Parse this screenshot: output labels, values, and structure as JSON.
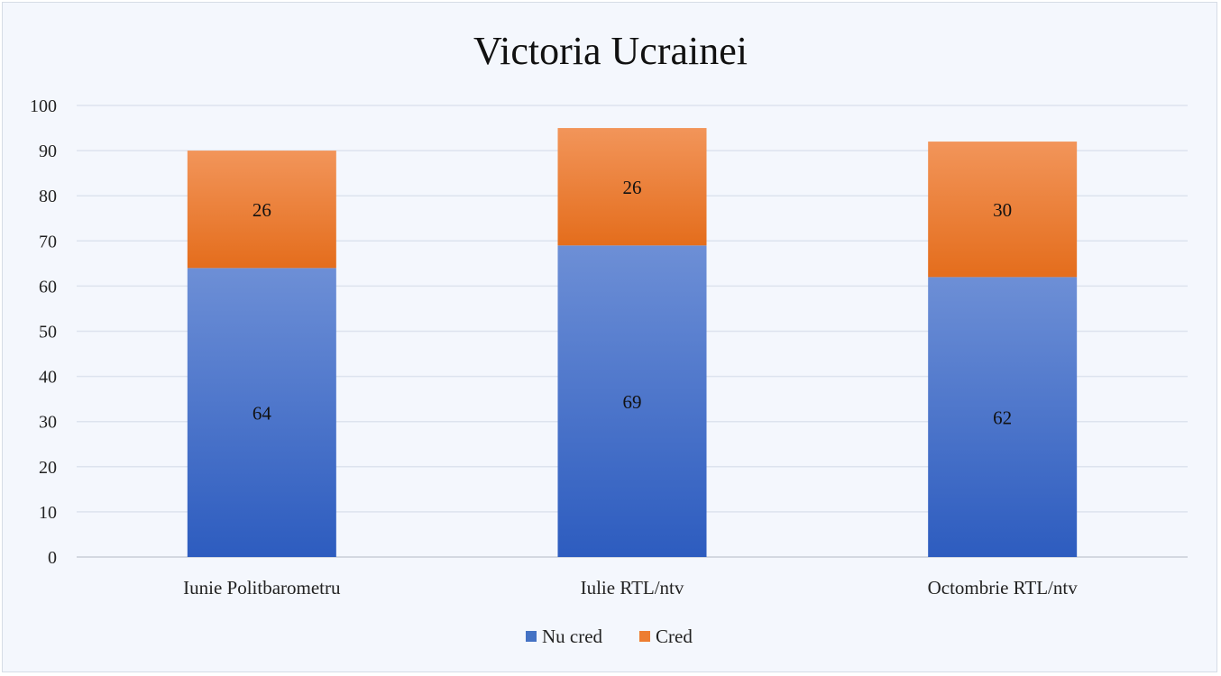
{
  "chart_data": {
    "type": "bar",
    "stacked": true,
    "title": "Victoria  Ucrainei",
    "xlabel": "",
    "ylabel": "",
    "categories": [
      "Iunie Politbarometru",
      "Iulie RTL/ntv",
      "Octombrie RTL/ntv"
    ],
    "series": [
      {
        "name": "Nu cred",
        "values": [
          64,
          69,
          62
        ],
        "color": "#4472c4"
      },
      {
        "name": "Cred",
        "values": [
          26,
          26,
          30
        ],
        "color": "#ed7d31"
      }
    ],
    "ylim": [
      0,
      100
    ],
    "yticks": [
      0,
      10,
      20,
      30,
      40,
      50,
      60,
      70,
      80,
      90,
      100
    ],
    "grid": true,
    "legend_position": "bottom",
    "data_labels": true
  }
}
